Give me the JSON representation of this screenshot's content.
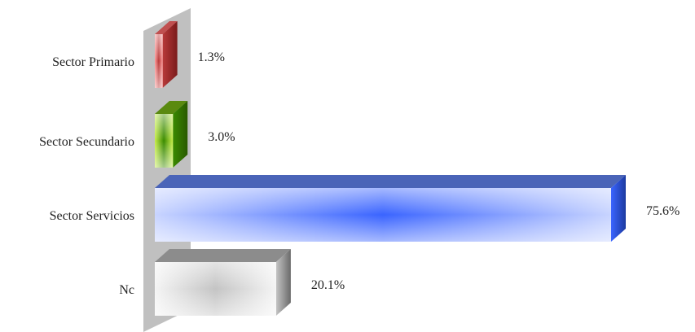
{
  "chart_data": {
    "type": "bar",
    "orientation": "horizontal",
    "style": "3d",
    "categories": [
      "Sector Primario",
      "Sector Secundario",
      "Sector Servicios",
      "Nc"
    ],
    "values": [
      1.3,
      3.0,
      75.6,
      20.1
    ],
    "value_labels": [
      "1.3%",
      "3.0%",
      "75.6%",
      "20.1%"
    ],
    "unit": "%",
    "xlim": [
      0,
      75.6
    ],
    "grid": false,
    "legend": "none",
    "title": "",
    "xlabel": "",
    "ylabel": "",
    "colors": {
      "wall": "#c0c0c0",
      "bars": [
        {
          "light": "#ff9a9a",
          "mid": "#b83a3a",
          "dark": "#7a1a1a",
          "top": "#c05050"
        },
        {
          "light": "#c8ee4a",
          "mid": "#3a8a00",
          "dark": "#2a5a00",
          "top": "#5a8a10"
        },
        {
          "light": "#c8d4ff",
          "mid": "#3a64ff",
          "dark": "#1c3aa0",
          "top": "#4a64b8"
        },
        {
          "light": "#f4f4f4",
          "mid": "#c4c4c4",
          "dark": "#6a6a6a",
          "top": "#8c8c8c"
        }
      ]
    }
  }
}
